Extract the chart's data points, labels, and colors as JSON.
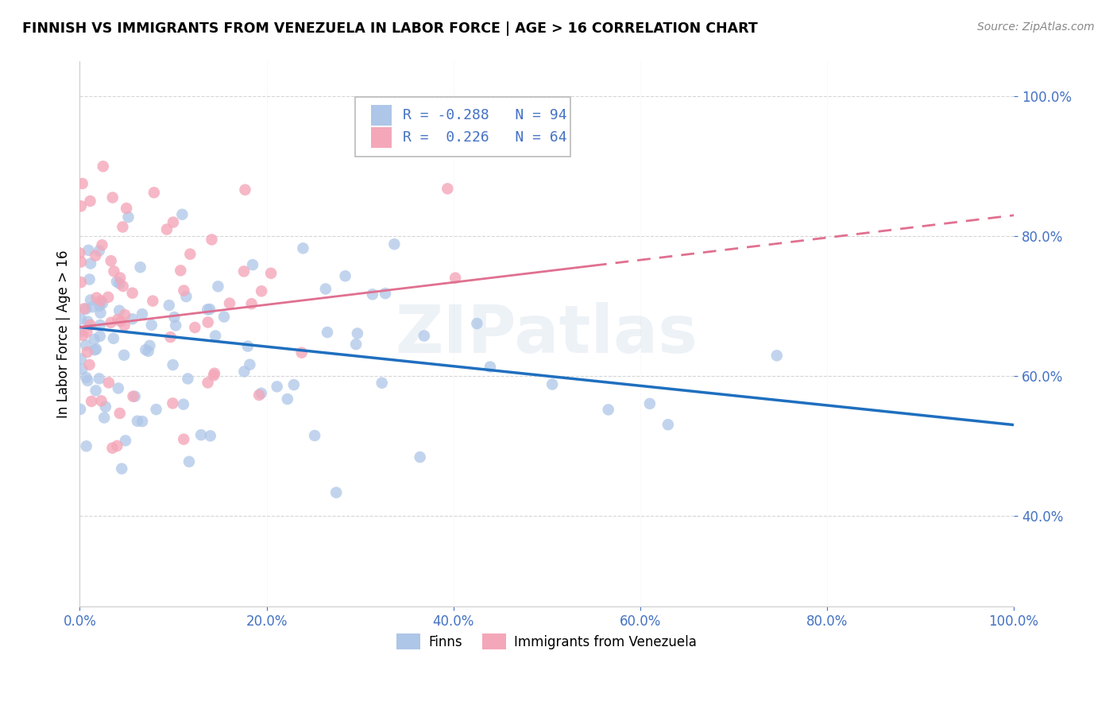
{
  "title": "FINNISH VS IMMIGRANTS FROM VENEZUELA IN LABOR FORCE | AGE > 16 CORRELATION CHART",
  "source": "Source: ZipAtlas.com",
  "ylabel": "In Labor Force | Age > 16",
  "xlim": [
    0.0,
    1.0
  ],
  "ylim": [
    0.27,
    1.05
  ],
  "x_ticks": [
    0.0,
    0.2,
    0.4,
    0.6,
    0.8,
    1.0
  ],
  "x_tick_labels": [
    "0.0%",
    "20.0%",
    "40.0%",
    "60.0%",
    "80.0%",
    "100.0%"
  ],
  "y_ticks": [
    0.4,
    0.6,
    0.8,
    1.0
  ],
  "y_tick_labels": [
    "40.0%",
    "60.0%",
    "80.0%",
    "100.0%"
  ],
  "legend_labels": [
    "Finns",
    "Immigrants from Venezuela"
  ],
  "finns_color": "#aec6e8",
  "venezuela_color": "#f4a7b9",
  "finns_line_color": "#1f6fbf",
  "venezuela_line_color": "#e07090",
  "finns_R": -0.288,
  "finns_N": 94,
  "venezuela_R": 0.226,
  "venezuela_N": 64,
  "finns_trend_start": 0.67,
  "finns_trend_end": 0.53,
  "venezuela_trend_start": 0.67,
  "venezuela_trend_end": 0.83,
  "tick_color": "#4472c4",
  "grid_color": "#cccccc",
  "watermark": "ZIPatlas"
}
